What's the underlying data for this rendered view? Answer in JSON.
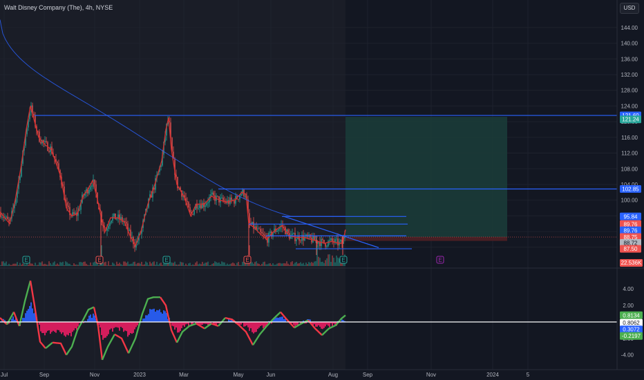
{
  "header": {
    "symbol_title": "Walt Disney Company (The), 4h, NYSE",
    "currency_button": "USD"
  },
  "colors": {
    "background": "#131722",
    "history_shade": "#1a1d27",
    "grid": "#1e222d",
    "price_up": "#26a69a",
    "price_down": "#ef5350",
    "candle_line": "#d32f2f",
    "ma": "#2962ff",
    "hline": "#2962ff",
    "target_zone": "#1b3b38",
    "stop_zone": "#4a2025",
    "osc_up": "#4caf50",
    "osc_down": "#f23645",
    "osc_fill_up": "#2962ff",
    "osc_fill_down": "#e91e63",
    "zero_line": "#ffffff"
  },
  "price_axis": {
    "ticks": [
      "144.00",
      "140.00",
      "136.00",
      "132.00",
      "128.00",
      "124.00",
      "120.00",
      "116.00",
      "112.00",
      "108.00",
      "104.00",
      "100.00",
      "96.00",
      "92.00",
      "88.00"
    ],
    "range": [
      85.5,
      147.5
    ]
  },
  "price_tags": [
    {
      "label": "121.60",
      "value": 121.6,
      "bg": "#2962ff",
      "fg": "#ffffff"
    },
    {
      "label": "121.24",
      "value": 120.6,
      "bg": "#26a69a",
      "fg": "#ffffff"
    },
    {
      "label": "102.85",
      "value": 102.85,
      "bg": "#2962ff",
      "fg": "#ffffff"
    },
    {
      "label": "95.84",
      "value": 95.84,
      "bg": "#2962ff",
      "fg": "#ffffff"
    },
    {
      "label": "89.76",
      "value": 93.9,
      "bg": "#ef5350",
      "fg": "#ffffff"
    },
    {
      "label": "89.76",
      "value": 92.3,
      "bg": "#2962ff",
      "fg": "#ffffff"
    },
    {
      "label": "88.75",
      "value": 90.6,
      "bg": "#ef5350",
      "fg": "#ffffff"
    },
    {
      "label": "88.72",
      "value": 89.1,
      "bg": "#b2b5be",
      "fg": "#131722"
    },
    {
      "label": "87.50",
      "value": 87.6,
      "bg": "#ef5350",
      "fg": "#ffffff"
    }
  ],
  "volume_tag": {
    "label": "22.536K",
    "bg": "#ef5350"
  },
  "osc_axis": {
    "ticks": [
      "4.00",
      "2.00",
      "-2.00",
      "-4.00"
    ],
    "range": [
      -5.2,
      6.2
    ]
  },
  "osc_tags": [
    {
      "label": "0.8134",
      "value": 0.81,
      "bg": "#4caf50",
      "fg": "#ffffff"
    },
    {
      "label": "0.8062",
      "value": -0.1,
      "bg": "#ffffff",
      "fg": "#131722"
    },
    {
      "label": "0.3072",
      "value": -0.9,
      "bg": "#2962ff",
      "fg": "#ffffff"
    },
    {
      "label": "-0.2197",
      "value": -1.7,
      "bg": "#4caf50",
      "fg": "#ffffff"
    }
  ],
  "time_axis": [
    "Jul",
    "Sep",
    "Nov",
    "2023",
    "Mar",
    "May",
    "Jun",
    "Aug",
    "Sep",
    "Nov",
    "2024",
    "5"
  ],
  "event_marker_label": "E",
  "chart_data": {
    "type": "candlestick",
    "x_range": [
      "2022-07",
      "2024-01"
    ],
    "horizontal_levels": [
      121.6,
      102.85,
      95.84,
      93.9,
      92.3,
      90.6,
      87.6
    ],
    "trendline": {
      "from": [
        93.9
      ],
      "to": [
        87.5
      ]
    },
    "position_tool": {
      "entry": 90.6,
      "target": 121.24,
      "stop": 89.8
    },
    "moving_average": "long-term, declining from ~146 to ~95.84",
    "last_price": 88.72
  }
}
